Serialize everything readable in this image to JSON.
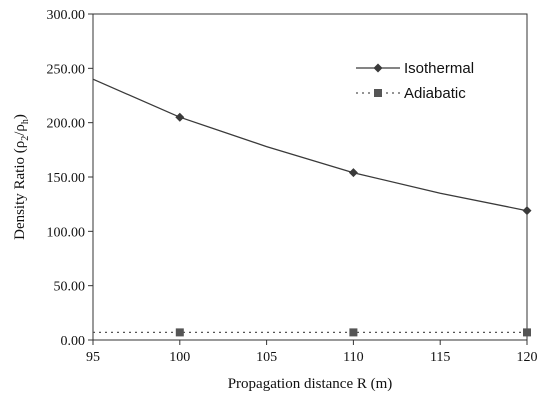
{
  "chart_data": {
    "type": "line",
    "xlabel": "Propagation distance R (m)",
    "ylabel_main": "Density Ratio (ρ",
    "ylabel_sub1": "2",
    "ylabel_mid": "/ρ",
    "ylabel_sub2": "h",
    "ylabel_end": ")",
    "xlim": [
      95,
      120
    ],
    "ylim": [
      0,
      300
    ],
    "xticks": [
      95,
      100,
      105,
      110,
      115,
      120
    ],
    "xtick_labels": [
      "95",
      "100",
      "105",
      "110",
      "115",
      "120"
    ],
    "yticks": [
      0,
      50,
      100,
      150,
      200,
      250,
      300
    ],
    "ytick_labels": [
      "0.00",
      "50.00",
      "100.00",
      "150.00",
      "200.00",
      "250.00",
      "300.00"
    ],
    "grid": false,
    "legend_position": "top-right",
    "series": [
      {
        "name": "Isothermal",
        "marker": "diamond",
        "line_style": "solid",
        "color": "#3a3a3a",
        "x": [
          95,
          100,
          105,
          110,
          115,
          120
        ],
        "y": [
          240,
          205,
          178,
          154,
          135,
          119
        ],
        "marker_x": [
          100,
          110,
          120
        ],
        "marker_y": [
          205,
          154,
          119
        ]
      },
      {
        "name": "Adiabatic",
        "marker": "square",
        "line_style": "dotted",
        "color": "#555555",
        "x": [
          95,
          120
        ],
        "y": [
          7,
          7
        ],
        "marker_x": [
          100,
          110,
          120
        ],
        "marker_y": [
          7,
          7,
          7
        ]
      }
    ]
  }
}
